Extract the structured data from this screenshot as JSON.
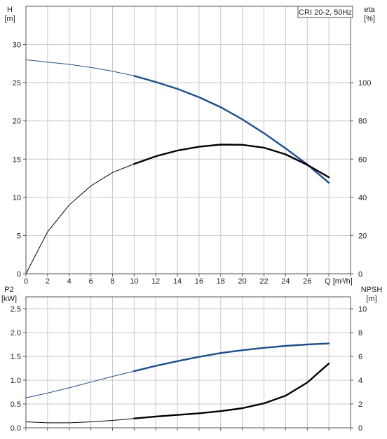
{
  "label": "CRI 20-2, 50Hz",
  "colors": {
    "blue": "#1f4e8c",
    "black": "#000000",
    "grid": "#c8c8c8",
    "frame": "#555555"
  },
  "chart_data": [
    {
      "type": "line",
      "xlabel": "Q [m³/h]",
      "ylabel_left": [
        "H",
        "[m]"
      ],
      "ylabel_right": [
        "eta",
        "[%]"
      ],
      "xlim": [
        0,
        30
      ],
      "ylim_left": [
        0,
        35
      ],
      "ylim_right": [
        0,
        140
      ],
      "x_ticks": [
        0,
        2,
        4,
        6,
        8,
        10,
        12,
        14,
        16,
        18,
        20,
        22,
        24,
        26
      ],
      "y_ticks_left": [
        0,
        5,
        10,
        15,
        20,
        25,
        30
      ],
      "y_ticks_right": [
        0,
        20,
        40,
        60,
        80,
        100
      ],
      "grid": true,
      "series": [
        {
          "axis": "left",
          "color": "#1f4e8c",
          "x": [
            0,
            2,
            4,
            6,
            8,
            10,
            12,
            14,
            16,
            18,
            20,
            22,
            24,
            26,
            28
          ],
          "y": [
            28.0,
            27.7,
            27.4,
            27.0,
            26.5,
            25.9,
            25.1,
            24.2,
            23.1,
            21.8,
            20.2,
            18.4,
            16.4,
            14.3,
            11.9
          ],
          "bold_range": [
            10,
            28
          ]
        },
        {
          "axis": "right",
          "color": "#000000",
          "x": [
            0,
            2,
            4,
            6,
            8,
            10,
            12,
            14,
            16,
            18,
            20,
            22,
            24,
            26,
            28
          ],
          "y": [
            0,
            22,
            36,
            46,
            53,
            57.5,
            61.5,
            64.5,
            66.5,
            67.6,
            67.5,
            66.0,
            62.5,
            57.0,
            50.5
          ],
          "bold_range": [
            10,
            28
          ]
        }
      ]
    },
    {
      "type": "line",
      "xlabel": "",
      "ylabel_left": [
        "P2",
        "[kW]"
      ],
      "ylabel_right": [
        "NPSH",
        "[m]"
      ],
      "xlim": [
        0,
        30
      ],
      "ylim_left": [
        0,
        2.75
      ],
      "ylim_right": [
        0,
        11
      ],
      "y_ticks_left": [
        "0.0",
        "0.5",
        "1.0",
        "1.5",
        "2.0",
        "2.5"
      ],
      "y_ticks_right": [
        0,
        2,
        4,
        6,
        8,
        10
      ],
      "grid": true,
      "series": [
        {
          "axis": "left",
          "color": "#1f4e8c",
          "x": [
            0,
            2,
            4,
            6,
            8,
            10,
            12,
            14,
            16,
            18,
            20,
            22,
            24,
            26,
            28
          ],
          "y": [
            0.63,
            0.73,
            0.84,
            0.96,
            1.08,
            1.19,
            1.3,
            1.4,
            1.49,
            1.57,
            1.63,
            1.68,
            1.72,
            1.75,
            1.77
          ],
          "bold_range": [
            10,
            28
          ]
        },
        {
          "axis": "right",
          "color": "#000000",
          "x": [
            0,
            2,
            4,
            6,
            8,
            10,
            12,
            14,
            16,
            18,
            20,
            22,
            24,
            26,
            28
          ],
          "y": [
            0.5,
            0.42,
            0.42,
            0.5,
            0.62,
            0.78,
            0.95,
            1.08,
            1.22,
            1.4,
            1.65,
            2.05,
            2.7,
            3.8,
            5.4
          ],
          "bold_range": [
            10,
            28
          ]
        }
      ]
    }
  ]
}
